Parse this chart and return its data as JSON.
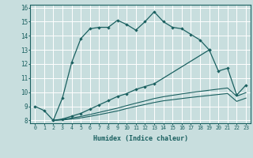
{
  "xlabel": "Humidex (Indice chaleur)",
  "xlim": [
    -0.5,
    23.5
  ],
  "ylim": [
    7.8,
    16.2
  ],
  "xticks": [
    0,
    1,
    2,
    3,
    4,
    5,
    6,
    7,
    8,
    9,
    10,
    11,
    12,
    13,
    14,
    15,
    16,
    17,
    18,
    19,
    20,
    21,
    22,
    23
  ],
  "yticks": [
    8,
    9,
    10,
    11,
    12,
    13,
    14,
    15,
    16
  ],
  "bg_color": "#c8dede",
  "grid_color": "#ffffff",
  "line_color": "#1a6060",
  "curve1_x": [
    0,
    1,
    2,
    3,
    4,
    5,
    6,
    7,
    8,
    9,
    10,
    11,
    12,
    13,
    14,
    15,
    16,
    17,
    18,
    19
  ],
  "curve1_y": [
    9.0,
    8.7,
    8.0,
    9.6,
    12.1,
    13.8,
    14.5,
    14.6,
    14.6,
    15.1,
    14.8,
    14.4,
    15.0,
    15.7,
    15.0,
    14.6,
    14.5,
    14.1,
    13.7,
    13.0
  ],
  "curve2_x": [
    2,
    3,
    4,
    5,
    6,
    7,
    8,
    9,
    10,
    11,
    12,
    13,
    19,
    20,
    21,
    22,
    23
  ],
  "curve2_y": [
    8.0,
    8.1,
    8.3,
    8.5,
    8.8,
    9.1,
    9.4,
    9.7,
    9.9,
    10.2,
    10.4,
    10.6,
    13.0,
    11.5,
    11.7,
    9.8,
    10.5
  ],
  "curve3_x": [
    2,
    3,
    4,
    5,
    6,
    7,
    8,
    9,
    10,
    11,
    12,
    13,
    14,
    15,
    16,
    17,
    18,
    19,
    20,
    21,
    22,
    23
  ],
  "curve3_y": [
    8.0,
    8.07,
    8.17,
    8.28,
    8.42,
    8.57,
    8.72,
    8.87,
    9.05,
    9.22,
    9.38,
    9.55,
    9.68,
    9.78,
    9.88,
    9.97,
    10.06,
    10.14,
    10.22,
    10.3,
    9.72,
    9.97
  ],
  "curve4_x": [
    2,
    3,
    4,
    5,
    6,
    7,
    8,
    9,
    10,
    11,
    12,
    13,
    14,
    15,
    16,
    17,
    18,
    19,
    20,
    21,
    22,
    23
  ],
  "curve4_y": [
    8.0,
    8.03,
    8.1,
    8.18,
    8.29,
    8.41,
    8.54,
    8.67,
    8.84,
    8.99,
    9.13,
    9.27,
    9.39,
    9.47,
    9.55,
    9.63,
    9.7,
    9.77,
    9.84,
    9.91,
    9.35,
    9.58
  ]
}
